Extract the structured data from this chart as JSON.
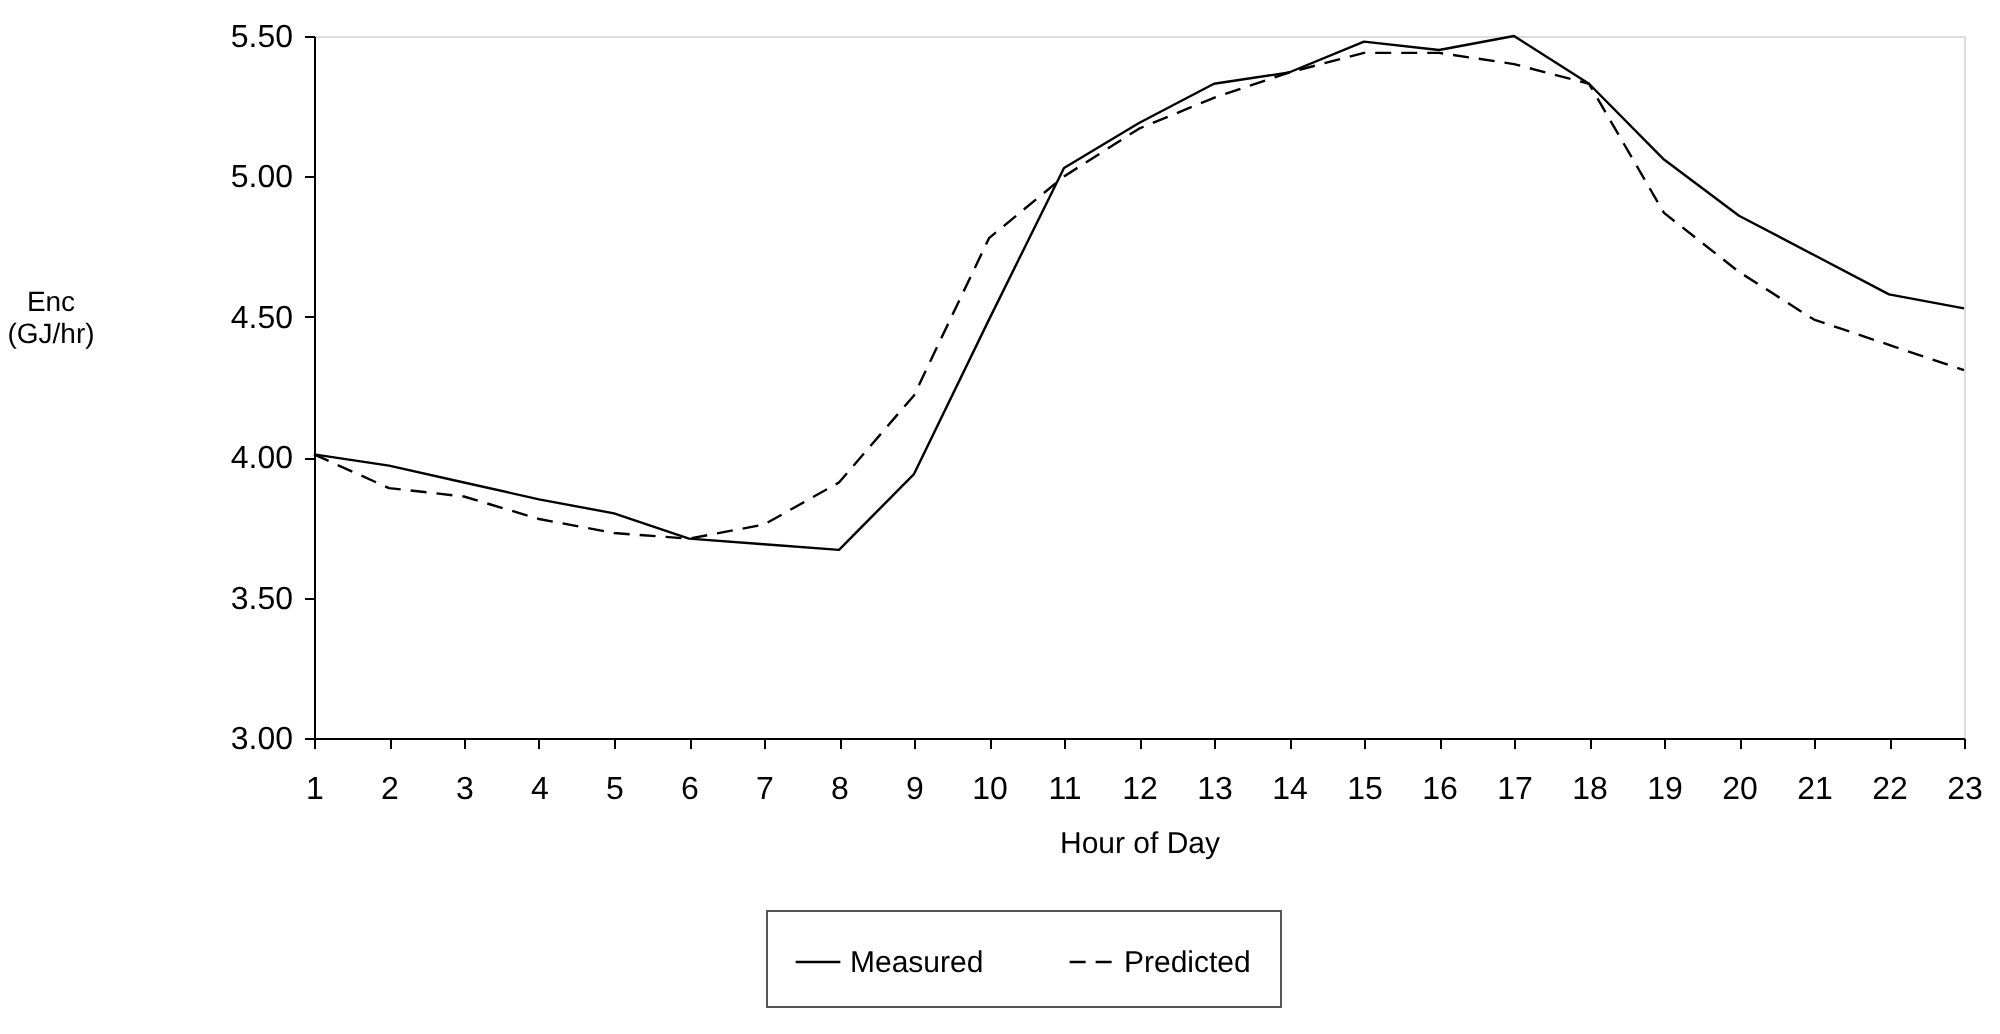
{
  "chart_data": {
    "type": "line",
    "xlabel": "Hour of Day",
    "ylabel": "Enc (GJ/hr)",
    "x": [
      1,
      2,
      3,
      4,
      5,
      6,
      7,
      8,
      9,
      10,
      11,
      12,
      13,
      14,
      15,
      16,
      17,
      18,
      19,
      20,
      21,
      22,
      23
    ],
    "series": [
      {
        "name": "Measured",
        "color": "#000000",
        "line_style": "solid",
        "values": [
          4.01,
          3.97,
          3.91,
          3.85,
          3.8,
          3.71,
          3.69,
          3.67,
          3.94,
          4.49,
          5.03,
          5.19,
          5.33,
          5.37,
          5.48,
          5.45,
          5.5,
          5.33,
          5.06,
          4.86,
          4.72,
          4.58,
          4.53
        ]
      },
      {
        "name": "Predicted",
        "color": "#000000",
        "line_style": "dashed",
        "values": [
          4.01,
          3.89,
          3.86,
          3.78,
          3.73,
          3.71,
          3.76,
          3.91,
          4.22,
          4.78,
          5.0,
          5.17,
          5.28,
          5.37,
          5.44,
          5.44,
          5.4,
          5.33,
          4.87,
          4.66,
          4.49,
          4.4,
          4.31
        ]
      }
    ],
    "xlim": [
      1,
      23
    ],
    "xticks": [
      1,
      2,
      3,
      4,
      5,
      6,
      7,
      8,
      9,
      10,
      11,
      12,
      13,
      14,
      15,
      16,
      17,
      18,
      19,
      20,
      21,
      22,
      23
    ],
    "ylim": [
      3.0,
      5.5
    ],
    "yticks": [
      {
        "value": 3.0,
        "label": "3.00"
      },
      {
        "value": 3.5,
        "label": "3.50"
      },
      {
        "value": 4.0,
        "label": "4.00"
      },
      {
        "value": 4.5,
        "label": "4.50"
      },
      {
        "value": 5.0,
        "label": "5.00"
      },
      {
        "value": 5.5,
        "label": "5.50"
      }
    ],
    "grid": false,
    "legend": "bottom",
    "marker": "none"
  }
}
